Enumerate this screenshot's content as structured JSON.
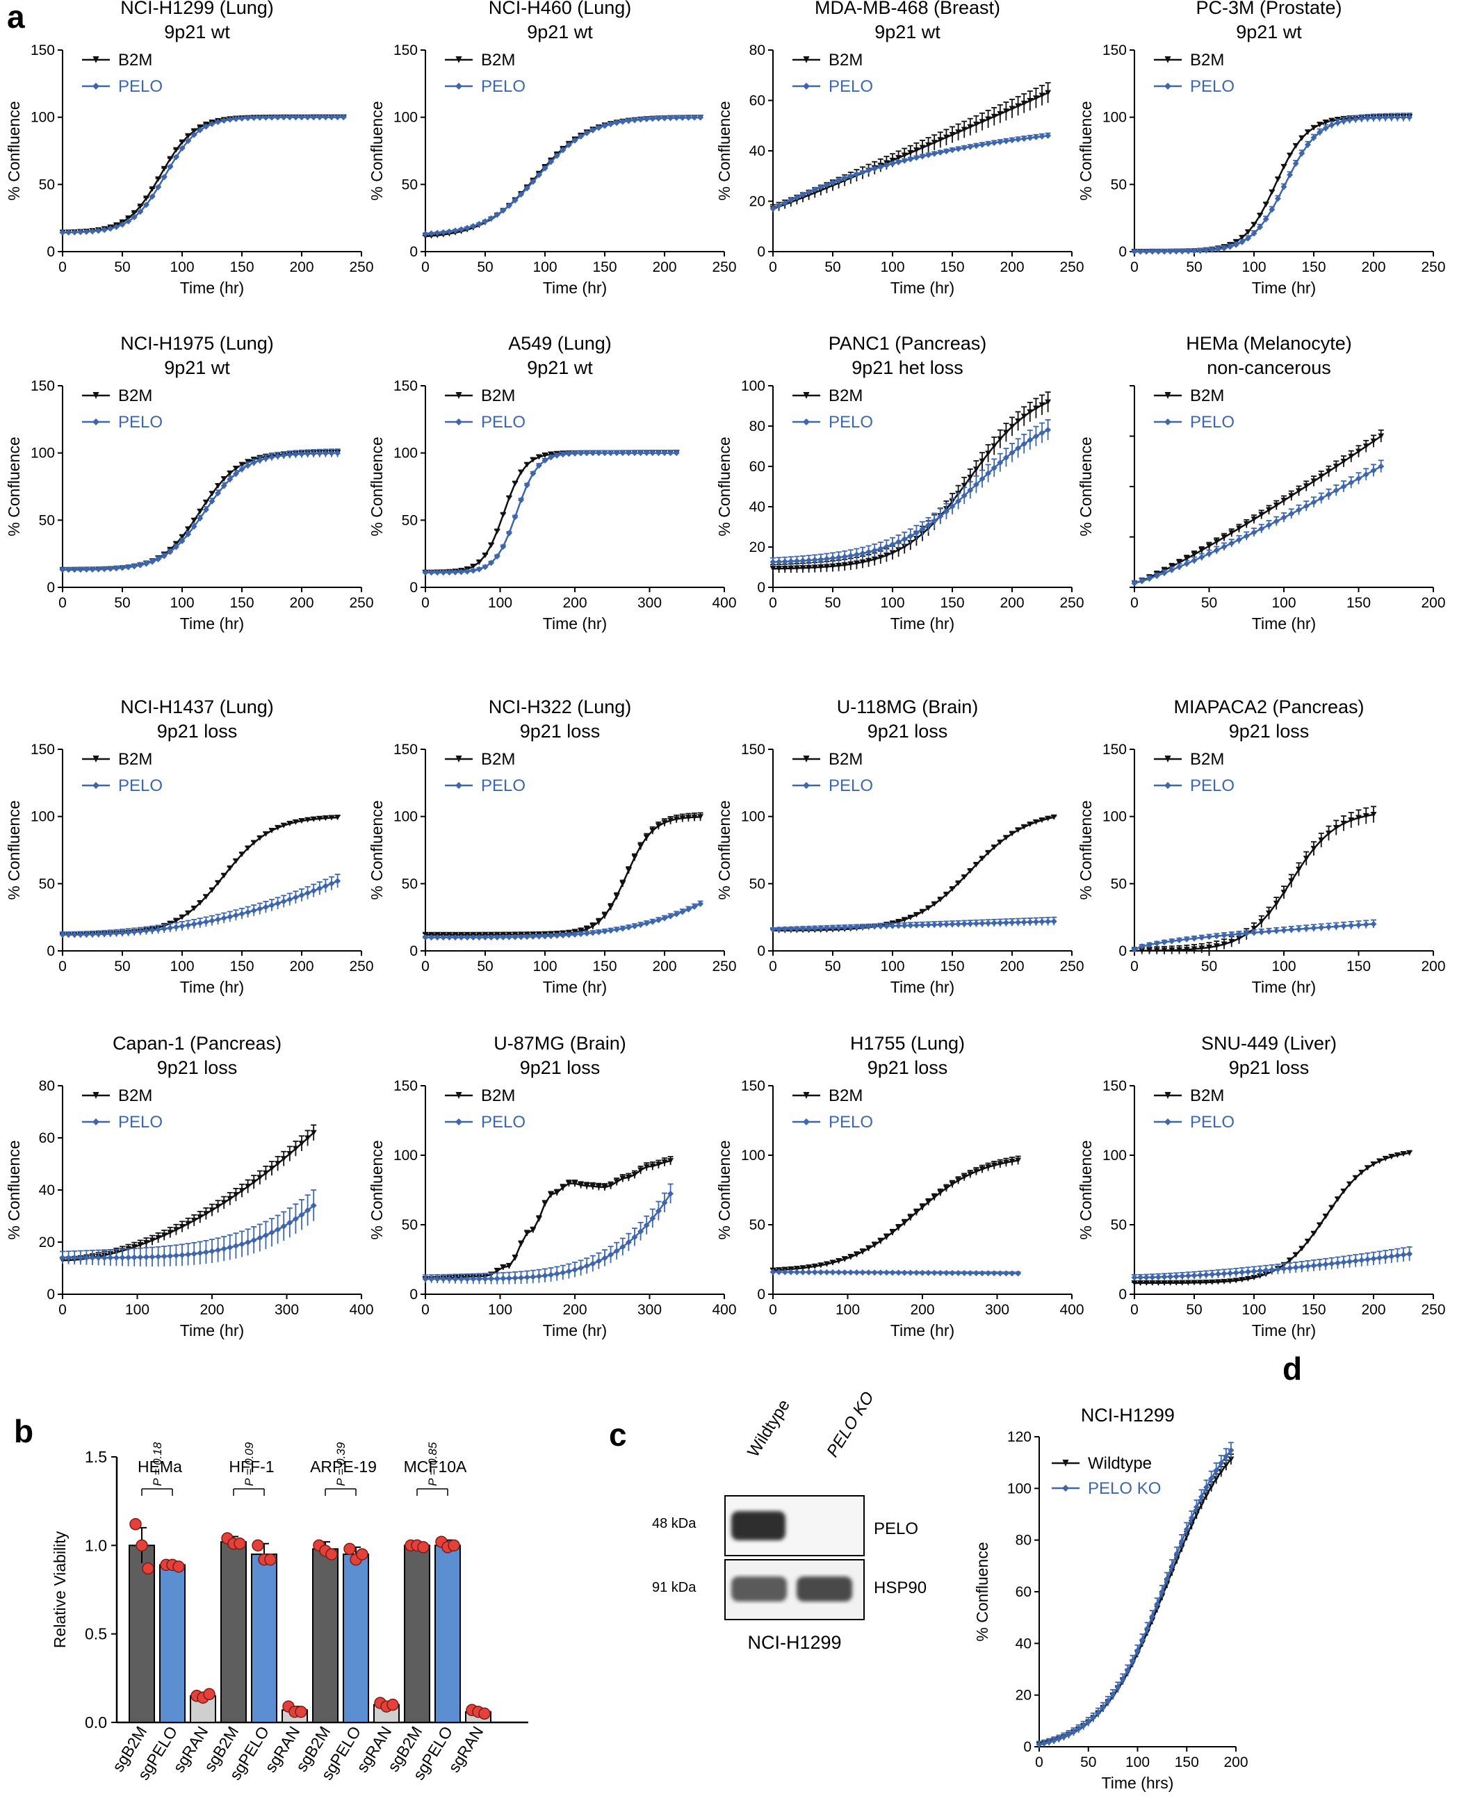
{
  "colors": {
    "b2m": "#111111",
    "pelo": "#3d66ad",
    "gray_bar": "#5e5e5e",
    "blue_bar": "#5b8fd2",
    "ran_bar": "#cfcfcf",
    "dot": "#e3413a"
  },
  "panel_labels": {
    "a": "a",
    "b": "b",
    "c": "c",
    "d": "d"
  },
  "legend": {
    "s1": "B2M",
    "s2": "PELO"
  },
  "axis": {
    "y": "% Confluence",
    "x": "Time (hr)"
  },
  "chart_data": [
    {
      "type": "line",
      "id": "h1299",
      "title": "NCI-H1299 (Lung)",
      "subtitle": "9p21 wt",
      "xlim": [
        0,
        250
      ],
      "xticks": [
        0,
        50,
        100,
        150,
        200,
        250
      ],
      "xmax_data": 235,
      "ylim": [
        0,
        150
      ],
      "yticks": [
        0,
        50,
        100,
        150
      ],
      "series": [
        {
          "name": "B2M",
          "model": {
            "kind": "sig",
            "a": 14,
            "b": 100,
            "m": 82,
            "w": 14
          },
          "err": 1
        },
        {
          "name": "PELO",
          "model": {
            "kind": "sig",
            "a": 14,
            "b": 100,
            "m": 86,
            "w": 14
          },
          "err": 1
        }
      ]
    },
    {
      "type": "line",
      "id": "h460",
      "title": "NCI-H460 (Lung)",
      "subtitle": "9p21 wt",
      "xlim": [
        0,
        250
      ],
      "xticks": [
        0,
        50,
        100,
        150,
        200,
        250
      ],
      "xmax_data": 230,
      "ylim": [
        0,
        150
      ],
      "yticks": [
        0,
        50,
        100,
        150
      ],
      "series": [
        {
          "name": "B2M",
          "model": {
            "kind": "sig",
            "a": 10,
            "b": 100,
            "m": 92,
            "w": 22
          },
          "err": 1.5
        },
        {
          "name": "PELO",
          "model": {
            "kind": "sig",
            "a": 12,
            "b": 100,
            "m": 94,
            "w": 22
          },
          "err": 1.5
        }
      ]
    },
    {
      "type": "line",
      "id": "mda468",
      "title": "MDA-MB-468 (Breast)",
      "subtitle": "9p21 wt",
      "xlim": [
        0,
        250
      ],
      "xticks": [
        0,
        50,
        100,
        150,
        200,
        250
      ],
      "xmax_data": 230,
      "ylim": [
        0,
        80
      ],
      "yticks": [
        0,
        20,
        40,
        60,
        80
      ],
      "series": [
        {
          "name": "B2M",
          "model": {
            "kind": "lin",
            "a": 17,
            "b": 63,
            "p": 1.05
          },
          "err": 4
        },
        {
          "name": "PELO",
          "model": {
            "kind": "sat",
            "a": 17,
            "b": 46,
            "k": 1.5
          },
          "err": 1
        }
      ]
    },
    {
      "type": "line",
      "id": "pc3m",
      "title": "PC-3M (Prostate)",
      "subtitle": "9p21 wt",
      "xlim": [
        0,
        250
      ],
      "xticks": [
        0,
        50,
        100,
        150,
        200,
        250
      ],
      "xmax_data": 230,
      "ylim": [
        0,
        150
      ],
      "yticks": [
        0,
        50,
        100,
        150
      ],
      "series": [
        {
          "name": "B2M",
          "model": {
            "kind": "sig",
            "a": 0,
            "b": 100,
            "m": 118,
            "w": 13
          },
          "err": 2
        },
        {
          "name": "PELO",
          "model": {
            "kind": "sig",
            "a": 0,
            "b": 100,
            "m": 126,
            "w": 14
          },
          "err": 3
        }
      ]
    },
    {
      "type": "line",
      "id": "h1975",
      "title": "NCI-H1975 (Lung)",
      "subtitle": "9p21 wt",
      "xlim": [
        0,
        250
      ],
      "xticks": [
        0,
        50,
        100,
        150,
        200,
        250
      ],
      "xmax_data": 230,
      "ylim": [
        0,
        150
      ],
      "yticks": [
        0,
        50,
        100,
        150
      ],
      "series": [
        {
          "name": "B2M",
          "model": {
            "kind": "sig",
            "a": 13,
            "b": 100,
            "m": 115,
            "w": 16
          },
          "err": 2
        },
        {
          "name": "PELO",
          "model": {
            "kind": "sig",
            "a": 13,
            "b": 100,
            "m": 119,
            "w": 17
          },
          "err": 3
        }
      ]
    },
    {
      "type": "line",
      "id": "a549",
      "title": "A549 (Lung)",
      "subtitle": "9p21 wt",
      "xlim": [
        0,
        400
      ],
      "xticks": [
        0,
        100,
        200,
        300,
        400
      ],
      "xmax_data": 340,
      "ylim": [
        0,
        150
      ],
      "yticks": [
        0,
        50,
        100,
        150
      ],
      "series": [
        {
          "name": "B2M",
          "model": {
            "kind": "sig",
            "a": 11,
            "b": 100,
            "m": 105,
            "w": 14
          },
          "err": 2
        },
        {
          "name": "PELO",
          "model": {
            "kind": "sig",
            "a": 11,
            "b": 100,
            "m": 122,
            "w": 14
          },
          "err": 2
        }
      ]
    },
    {
      "type": "line",
      "id": "panc1",
      "title": "PANC1 (Pancreas)",
      "subtitle": "9p21 het loss",
      "xlim": [
        0,
        250
      ],
      "xticks": [
        0,
        50,
        100,
        150,
        200,
        250
      ],
      "xmax_data": 230,
      "ylim": [
        0,
        100
      ],
      "yticks": [
        0,
        20,
        40,
        60,
        80,
        100
      ],
      "series": [
        {
          "name": "B2M",
          "model": {
            "kind": "sig",
            "a": 9,
            "b": 100,
            "m": 165,
            "w": 28
          },
          "err": 5
        },
        {
          "name": "PELO",
          "model": {
            "kind": "sig",
            "a": 12,
            "b": 90,
            "m": 170,
            "w": 35
          },
          "err": 5
        }
      ]
    },
    {
      "type": "line",
      "id": "hema",
      "title": "HEMa (Melanocyte)",
      "subtitle": "non-cancerous",
      "xlim": [
        0,
        200
      ],
      "xticks": [
        0,
        50,
        100,
        150,
        200
      ],
      "xmax_data": 165,
      "ylim": [
        0,
        100
      ],
      "yticks": [],
      "series": [
        {
          "name": "B2M",
          "model": {
            "kind": "lin",
            "a": 2,
            "b": 75,
            "p": 1.15
          },
          "err": 3
        },
        {
          "name": "PELO",
          "model": {
            "kind": "lin",
            "a": 2,
            "b": 60,
            "p": 1.15
          },
          "err": 3
        }
      ]
    },
    {
      "type": "line",
      "id": "h1437",
      "title": "NCI-H1437 (Lung)",
      "subtitle": "9p21 loss",
      "xlim": [
        0,
        250
      ],
      "xticks": [
        0,
        50,
        100,
        150,
        200,
        250
      ],
      "xmax_data": 230,
      "ylim": [
        0,
        150
      ],
      "yticks": [
        0,
        50,
        100,
        150
      ],
      "series": [
        {
          "name": "B2M",
          "model": {
            "kind": "sig",
            "a": 12,
            "b": 100,
            "m": 135,
            "w": 20
          },
          "err": 1.5
        },
        {
          "name": "PELO",
          "model": {
            "kind": "lin",
            "a": 12,
            "b": 52,
            "p": 2.2
          },
          "err": 5
        }
      ]
    },
    {
      "type": "line",
      "id": "h322",
      "title": "NCI-H322 (Lung)",
      "subtitle": "9p21 loss",
      "xlim": [
        0,
        250
      ],
      "xticks": [
        0,
        50,
        100,
        150,
        200,
        250
      ],
      "xmax_data": 230,
      "ylim": [
        0,
        150
      ],
      "yticks": [
        0,
        50,
        100,
        150
      ],
      "series": [
        {
          "name": "B2M",
          "model": {
            "kind": "sig",
            "a": 12,
            "b": 100,
            "m": 168,
            "w": 11
          },
          "err": 3
        },
        {
          "name": "PELO",
          "model": {
            "kind": "lin",
            "a": 10,
            "b": 35,
            "p": 4
          },
          "err": 2
        }
      ]
    },
    {
      "type": "line",
      "id": "u118",
      "title": "U-118MG (Brain)",
      "subtitle": "9p21 loss",
      "xlim": [
        0,
        250
      ],
      "xticks": [
        0,
        50,
        100,
        150,
        200,
        250
      ],
      "xmax_data": 235,
      "ylim": [
        0,
        150
      ],
      "yticks": [
        0,
        50,
        100,
        150
      ],
      "series": [
        {
          "name": "B2M",
          "model": {
            "kind": "sig",
            "a": 15,
            "b": 104,
            "m": 165,
            "w": 24
          },
          "err": 1
        },
        {
          "name": "PELO",
          "model": {
            "kind": "lin",
            "a": 16,
            "b": 22,
            "p": 1
          },
          "err": 3
        }
      ]
    },
    {
      "type": "line",
      "id": "miapaca",
      "title": "MIAPACA2 (Pancreas)",
      "subtitle": "9p21 loss",
      "xlim": [
        0,
        200
      ],
      "xticks": [
        0,
        50,
        100,
        150,
        200
      ],
      "xmax_data": 160,
      "ylim": [
        0,
        150
      ],
      "yticks": [
        0,
        50,
        100,
        150
      ],
      "series": [
        {
          "name": "B2M",
          "model": {
            "kind": "sig",
            "a": 0,
            "b": 104,
            "m": 105,
            "w": 15
          },
          "err": 6
        },
        {
          "name": "PELO",
          "model": {
            "kind": "lin",
            "a": 1,
            "b": 20,
            "p": 0.6
          },
          "err": 3
        }
      ]
    },
    {
      "type": "line",
      "id": "capan1",
      "title": "Capan-1 (Pancreas)",
      "subtitle": "9p21 loss",
      "xlim": [
        0,
        400
      ],
      "xticks": [
        0,
        100,
        200,
        300,
        400
      ],
      "xmax_data": 340,
      "ylim": [
        0,
        80
      ],
      "yticks": [
        0,
        20,
        40,
        60,
        80
      ],
      "series": [
        {
          "name": "B2M",
          "model": {
            "kind": "lin",
            "a": 13,
            "b": 63,
            "p": 1.8
          },
          "err": 3
        },
        {
          "name": "PELO",
          "model": {
            "kind": "lin",
            "a": 14,
            "b": 35,
            "p": 4
          },
          "err": 6
        }
      ]
    },
    {
      "type": "line",
      "id": "u87",
      "title": "U-87MG (Brain)",
      "subtitle": "9p21 loss",
      "xlim": [
        0,
        400
      ],
      "xticks": [
        0,
        100,
        200,
        300,
        400
      ],
      "xmax_data": 330,
      "ylim": [
        0,
        150
      ],
      "yticks": [
        0,
        50,
        100,
        150
      ],
      "series": [
        {
          "name": "B2M",
          "model": {
            "kind": "pts",
            "pts": [
              [
                0,
                11
              ],
              [
                80,
                13
              ],
              [
                110,
                20
              ],
              [
                140,
                45
              ],
              [
                170,
                72
              ],
              [
                195,
                80
              ],
              [
                215,
                78
              ],
              [
                240,
                77
              ],
              [
                270,
                84
              ],
              [
                300,
                92
              ],
              [
                330,
                96
              ]
            ]
          },
          "err": 3
        },
        {
          "name": "PELO",
          "model": {
            "kind": "lin",
            "a": 11,
            "b": 74,
            "p": 4.5
          },
          "err": 7
        }
      ]
    },
    {
      "type": "line",
      "id": "h1755",
      "title": "H1755 (Lung)",
      "subtitle": "9p21 loss",
      "xlim": [
        0,
        400
      ],
      "xticks": [
        0,
        100,
        200,
        300,
        400
      ],
      "xmax_data": 330,
      "ylim": [
        0,
        150
      ],
      "yticks": [
        0,
        50,
        100,
        150
      ],
      "series": [
        {
          "name": "B2M",
          "model": {
            "kind": "sig",
            "a": 16,
            "b": 100,
            "m": 190,
            "w": 45
          },
          "err": 3
        },
        {
          "name": "PELO",
          "model": {
            "kind": "lin",
            "a": 16,
            "b": 15,
            "p": 1
          },
          "err": 1
        }
      ]
    },
    {
      "type": "line",
      "id": "snu449",
      "title": "SNU-449 (Liver)",
      "subtitle": "9p21 loss",
      "xlim": [
        0,
        250
      ],
      "xticks": [
        0,
        50,
        100,
        150,
        200,
        250
      ],
      "xmax_data": 230,
      "ylim": [
        0,
        150
      ],
      "yticks": [
        0,
        50,
        100,
        150
      ],
      "series": [
        {
          "name": "B2M",
          "model": {
            "kind": "sig",
            "a": 8,
            "b": 104,
            "m": 160,
            "w": 19
          },
          "err": 1.5
        },
        {
          "name": "PELO",
          "model": {
            "kind": "lin",
            "a": 12,
            "b": 29,
            "p": 1.6
          },
          "err": 5
        }
      ]
    },
    {
      "type": "bar",
      "id": "viability",
      "ylabel": "Relative Viability",
      "ylim": [
        0,
        1.5
      ],
      "yticks": [
        0,
        0.5,
        1.0,
        1.5
      ],
      "ytick_labels": [
        "0.0",
        "0.5",
        "1.0",
        "1.5"
      ],
      "groups": [
        {
          "name": "HEMa",
          "p": "P = 0.18",
          "values": [
            1.0,
            0.89,
            0.15
          ],
          "err": [
            0.1,
            0.02,
            0.02
          ],
          "dots": [
            [
              1.12,
              1.0,
              0.87
            ],
            [
              0.89,
              0.89,
              0.88
            ],
            [
              0.15,
              0.14,
              0.16
            ]
          ]
        },
        {
          "name": "HFF-1",
          "p": "P = 0.09",
          "values": [
            1.02,
            0.95,
            0.07
          ],
          "err": [
            0.03,
            0.06,
            0.02
          ],
          "dots": [
            [
              1.04,
              1.01,
              1.01
            ],
            [
              1.0,
              0.92,
              0.92
            ],
            [
              0.09,
              0.06,
              0.06
            ]
          ]
        },
        {
          "name": "ARPE-19",
          "p": "P = 0.39",
          "values": [
            0.98,
            0.95,
            0.1
          ],
          "err": [
            0.04,
            0.04,
            0.01
          ],
          "dots": [
            [
              1.0,
              0.97,
              0.95
            ],
            [
              0.98,
              0.92,
              0.95
            ],
            [
              0.11,
              0.09,
              0.1
            ]
          ]
        },
        {
          "name": "MCF10A",
          "p": "P = 0.85",
          "values": [
            1.0,
            1.0,
            0.06
          ],
          "err": [
            0.01,
            0.03,
            0.01
          ],
          "dots": [
            [
              1.0,
              1.0,
              0.99
            ],
            [
              1.02,
              0.99,
              1.0
            ],
            [
              0.07,
              0.06,
              0.05
            ]
          ]
        }
      ],
      "categories": [
        "sgB2M",
        "sgPELO",
        "sgRAN"
      ]
    },
    {
      "type": "line",
      "id": "h1299ko",
      "title": "NCI-H1299",
      "xlabel": "Time (hrs)",
      "ylabel": "% Confluence",
      "xlim": [
        0,
        200
      ],
      "xticks": [
        0,
        50,
        100,
        150,
        200
      ],
      "xmax_data": 195,
      "ylim": [
        0,
        120
      ],
      "yticks": [
        0,
        20,
        40,
        60,
        80,
        100,
        120
      ],
      "legend": [
        "Wildtype",
        "PELO KO"
      ],
      "series": [
        {
          "name": "Wildtype",
          "model": {
            "kind": "sig",
            "a": -2,
            "b": 128,
            "m": 130,
            "w": 34
          },
          "err": 2
        },
        {
          "name": "PELO KO",
          "model": {
            "kind": "sig",
            "a": -2,
            "b": 132,
            "m": 130,
            "w": 34
          },
          "err": 3
        }
      ]
    }
  ],
  "western": {
    "lanes": [
      "Wildtype",
      "PELO KO"
    ],
    "rows": [
      {
        "kda": "48 kDa",
        "protein": "PELO"
      },
      {
        "kda": "91 kDa",
        "protein": "HSP90"
      }
    ],
    "cell_line": "NCI-H1299"
  }
}
